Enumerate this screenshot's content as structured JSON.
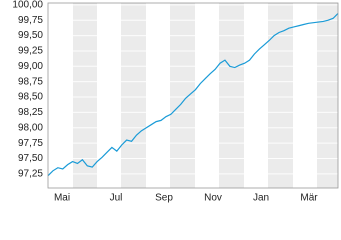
{
  "chart_data": {
    "type": "line",
    "x_labels": [
      "Mai",
      "Jul",
      "Sep",
      "Nov",
      "Jan",
      "Mär"
    ],
    "series": [
      {
        "color": "#1a9bd7",
        "values": [
          97.22,
          97.3,
          97.35,
          97.33,
          97.4,
          97.45,
          97.42,
          97.48,
          97.38,
          97.36,
          97.45,
          97.52,
          97.6,
          97.68,
          97.62,
          97.72,
          97.8,
          97.78,
          97.88,
          97.95,
          98.0,
          98.05,
          98.1,
          98.12,
          98.18,
          98.22,
          98.3,
          98.38,
          98.48,
          98.55,
          98.62,
          98.72,
          98.8,
          98.88,
          98.95,
          99.05,
          99.1,
          99.0,
          98.98,
          99.02,
          99.05,
          99.1,
          99.2,
          99.28,
          99.35,
          99.42,
          99.5,
          99.55,
          99.58,
          99.62,
          99.64,
          99.66,
          99.68,
          99.7,
          99.71,
          99.72,
          99.73,
          99.75,
          99.78,
          99.86
        ]
      }
    ],
    "ylim": [
      97.02,
      100.03
    ],
    "yticks": [
      {
        "value": 97.25,
        "label": "97,25"
      },
      {
        "value": 97.5,
        "label": "97,50"
      },
      {
        "value": 97.75,
        "label": "97,75"
      },
      {
        "value": 98.0,
        "label": "98,00"
      },
      {
        "value": 98.25,
        "label": "98,25"
      },
      {
        "value": 98.5,
        "label": "98,50"
      },
      {
        "value": 98.75,
        "label": "98,75"
      },
      {
        "value": 99.0,
        "label": "99,00"
      },
      {
        "value": 99.25,
        "label": "99,25"
      },
      {
        "value": 99.5,
        "label": "99,50"
      },
      {
        "value": 99.75,
        "label": "99,75"
      },
      {
        "value": 100.0,
        "label": "100,00"
      }
    ],
    "grid": true
  }
}
